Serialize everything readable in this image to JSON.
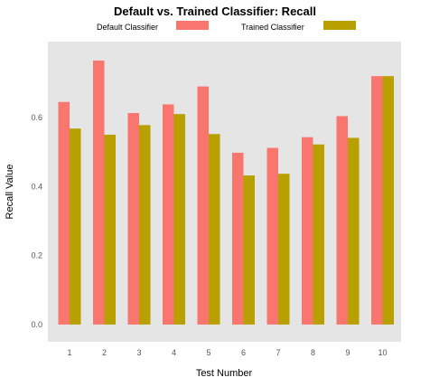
{
  "chart_data": {
    "type": "bar",
    "title": "Default vs. Trained Classifier: Recall",
    "xlabel": "Test Number",
    "ylabel": "Recall Value",
    "categories": [
      "1",
      "2",
      "3",
      "4",
      "5",
      "6",
      "7",
      "8",
      "9",
      "10"
    ],
    "series": [
      {
        "name": "Default Classifier",
        "color": "#F8766D",
        "values": [
          0.645,
          0.765,
          0.613,
          0.638,
          0.69,
          0.498,
          0.512,
          0.543,
          0.604,
          0.72
        ]
      },
      {
        "name": "Trained Classifier",
        "color": "#B8A000",
        "values": [
          0.568,
          0.55,
          0.578,
          0.61,
          0.552,
          0.432,
          0.437,
          0.522,
          0.541,
          0.72
        ]
      }
    ],
    "ylim": [
      -0.05,
      0.82
    ],
    "yticks": [
      "0.0",
      "0.2",
      "0.4",
      "0.6"
    ],
    "grid": false,
    "panel_background": "#E5E5E5",
    "legend_position": "top"
  }
}
